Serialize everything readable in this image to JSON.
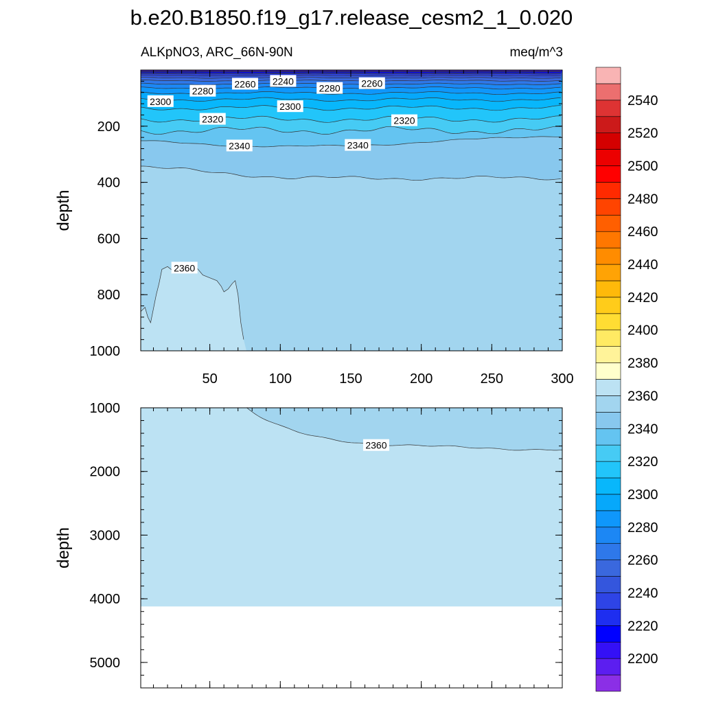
{
  "chart_data": {
    "type": "contour",
    "title": "b.e20.B1850.f19_g17.release_cesm2_1_0.020",
    "left_subtitle": "ALKpNO3, ARC_66N-90N",
    "right_subtitle": "meq/m^3",
    "xlabel": "",
    "ylabel": "depth",
    "x_ticks": [
      50,
      100,
      150,
      200,
      250,
      300
    ],
    "xlim": [
      1,
      300
    ],
    "panels": [
      {
        "name": "upper",
        "ylim": [
          0,
          1000
        ],
        "y_ticks": [
          200,
          400,
          600,
          800,
          1000
        ],
        "contour_labels": [
          {
            "text": "2240",
            "x": 102,
            "y": 40
          },
          {
            "text": "2260",
            "x": 75,
            "y": 50
          },
          {
            "text": "2260",
            "x": 165,
            "y": 48
          },
          {
            "text": "2280",
            "x": 45,
            "y": 75
          },
          {
            "text": "2280",
            "x": 135,
            "y": 65
          },
          {
            "text": "2300",
            "x": 15,
            "y": 112
          },
          {
            "text": "2300",
            "x": 107,
            "y": 130
          },
          {
            "text": "2320",
            "x": 52,
            "y": 175
          },
          {
            "text": "2320",
            "x": 188,
            "y": 180
          },
          {
            "text": "2340",
            "x": 71,
            "y": 270
          },
          {
            "text": "2340",
            "x": 155,
            "y": 268
          },
          {
            "text": "2360",
            "x": 32,
            "y": 705
          }
        ]
      },
      {
        "name": "lower",
        "ylim": [
          1000,
          5400
        ],
        "y_ticks": [
          1000,
          2000,
          3000,
          4000,
          5000
        ],
        "contour_labels": [
          {
            "text": "2360",
            "x": 168,
            "y": 1590
          }
        ]
      }
    ],
    "colorbar": {
      "levels": [
        2190,
        2200,
        2210,
        2220,
        2230,
        2240,
        2250,
        2260,
        2270,
        2280,
        2290,
        2300,
        2310,
        2320,
        2330,
        2340,
        2350,
        2360,
        2370,
        2380,
        2390,
        2400,
        2410,
        2420,
        2430,
        2440,
        2450,
        2460,
        2470,
        2480,
        2490,
        2500,
        2510,
        2520,
        2530,
        2540,
        2550
      ],
      "labels": [
        "2200",
        "2220",
        "2240",
        "2260",
        "2280",
        "2300",
        "2320",
        "2340",
        "2360",
        "2380",
        "2400",
        "2420",
        "2440",
        "2460",
        "2480",
        "2500",
        "2520",
        "2540"
      ],
      "colors": [
        "#8b2fe6",
        "#5c1ef0",
        "#3410f6",
        "#0000ff",
        "#1e2ef0",
        "#2e44e6",
        "#3456dd",
        "#3a68de",
        "#2e78ea",
        "#1c87f4",
        "#0f97fb",
        "#06a8fb",
        "#08b7fb",
        "#22c5fa",
        "#46cbf4",
        "#64c4f1",
        "#88c8ee",
        "#a2d5ef",
        "#bce2f3",
        "#ffffcc",
        "#fff399",
        "#ffea63",
        "#ffdd33",
        "#ffcc1a",
        "#ffb90a",
        "#ffa305",
        "#ff8c00",
        "#ff7700",
        "#ff5f00",
        "#ff4400",
        "#ff2a00",
        "#ff0000",
        "#ec0000",
        "#d40000",
        "#cc1a1a",
        "#de3333",
        "#ec6f6f",
        "#f9b4b4"
      ]
    },
    "land_color": "#ffffff"
  }
}
